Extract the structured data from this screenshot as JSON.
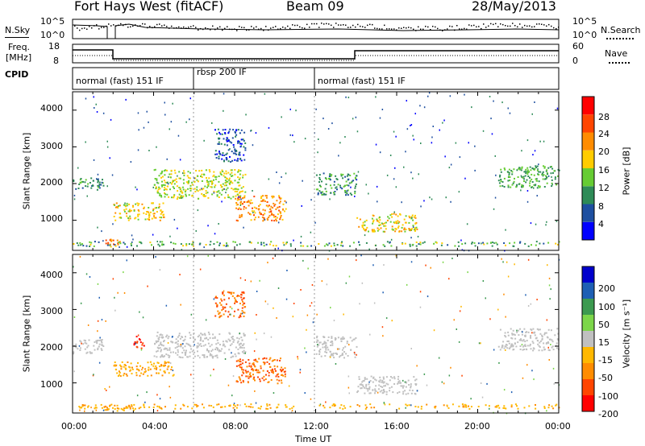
{
  "header": {
    "radar": "Fort Hays West (fitACF)",
    "beam": "Beam 09",
    "date": "28/May/2013"
  },
  "top_panels": {
    "nsky_label": "N.Sky",
    "nsearch_label": "N.Search",
    "noise_ticks_left": [
      "10^5",
      "10^0"
    ],
    "noise_ticks_right": [
      "10^5",
      "10^0"
    ],
    "freq_label_line1": "Freq.",
    "freq_label_line2": "[MHz]",
    "freq_ticks": [
      "18",
      "8"
    ],
    "nave_label": "Nave",
    "nave_ticks": [
      "60",
      "0"
    ],
    "cpid_label": "CPID",
    "cpid_segments": [
      {
        "label": "normal (fast) 151 IF",
        "start_hour": 0,
        "end_hour": 6
      },
      {
        "label": "rbsp 200 IF",
        "start_hour": 6,
        "end_hour": 12
      },
      {
        "label": "normal (fast) 151 IF",
        "start_hour": 12,
        "end_hour": 24
      }
    ]
  },
  "axes": {
    "ylabel": "Slant Range [km]",
    "yticks": [
      "4000",
      "3000",
      "2000",
      "1000"
    ],
    "xticks": [
      "00:00",
      "04:00",
      "08:00",
      "12:00",
      "16:00",
      "20:00",
      "00:00"
    ],
    "xlabel": "Time UT"
  },
  "colorbars": {
    "power": {
      "label": "Power [dB]",
      "ticks": [
        "28",
        "24",
        "20",
        "16",
        "12",
        "8",
        "4"
      ],
      "colors": [
        "#0000ff",
        "#1e4fa0",
        "#2e8b57",
        "#66cc33",
        "#ffcc00",
        "#ff8c00",
        "#ff4500",
        "#ff0000"
      ]
    },
    "velocity": {
      "label": "Velocity [m s⁻¹]",
      "ticks": [
        "200",
        "100",
        "50",
        "15",
        "-15",
        "-50",
        "-100",
        "-200"
      ],
      "colors": [
        "#0000cc",
        "#1e5fb4",
        "#3c9a50",
        "#7cd64a",
        "#c0c0c0",
        "#ffb800",
        "#ff8c00",
        "#ff4500",
        "#ff0000"
      ]
    }
  },
  "chart_data": [
    {
      "type": "heatmap",
      "panel": "power",
      "x_range": [
        0,
        24
      ],
      "y_range": [
        180,
        4500
      ],
      "colorbar_label": "Power [dB]",
      "features": [
        {
          "t0": 0.0,
          "t1": 1.5,
          "r0": 1850,
          "r1": 2200,
          "value": 10
        },
        {
          "t0": 1.5,
          "t1": 2.5,
          "r0": 300,
          "r1": 500,
          "value": 22
        },
        {
          "t0": 2.0,
          "t1": 4.5,
          "r0": 1000,
          "r1": 1500,
          "value": 18
        },
        {
          "t0": 4.0,
          "t1": 8.5,
          "r0": 1600,
          "r1": 2400,
          "value": 16
        },
        {
          "t0": 7.0,
          "t1": 8.5,
          "r0": 2600,
          "r1": 3500,
          "value": 6
        },
        {
          "t0": 8.0,
          "t1": 10.5,
          "r0": 1000,
          "r1": 1700,
          "value": 22
        },
        {
          "t0": 12.0,
          "t1": 14.0,
          "r0": 1700,
          "r1": 2300,
          "value": 10
        },
        {
          "t0": 14.0,
          "t1": 17.0,
          "r0": 700,
          "r1": 1200,
          "value": 18
        },
        {
          "t0": 21.0,
          "t1": 24.0,
          "r0": 1900,
          "r1": 2500,
          "value": 12
        }
      ]
    },
    {
      "type": "heatmap",
      "panel": "velocity",
      "x_range": [
        0,
        24
      ],
      "y_range": [
        180,
        4500
      ],
      "colorbar_label": "Velocity [m s⁻¹]",
      "features": [
        {
          "t0": 0.0,
          "t1": 1.5,
          "r0": 1800,
          "r1": 2200,
          "value": 0
        },
        {
          "t0": 1.5,
          "t1": 3.0,
          "r0": 250,
          "r1": 450,
          "value": -50
        },
        {
          "t0": 2.0,
          "t1": 5.0,
          "r0": 1200,
          "r1": 1600,
          "value": -50
        },
        {
          "t0": 3.0,
          "t1": 3.5,
          "r0": 1900,
          "r1": 2300,
          "value": -200
        },
        {
          "t0": 4.0,
          "t1": 8.5,
          "r0": 1700,
          "r1": 2400,
          "value": 0
        },
        {
          "t0": 7.0,
          "t1": 8.5,
          "r0": 2800,
          "r1": 3500,
          "value": -100
        },
        {
          "t0": 8.0,
          "t1": 10.5,
          "r0": 1000,
          "r1": 1700,
          "value": -100
        },
        {
          "t0": 12.0,
          "t1": 14.0,
          "r0": 1700,
          "r1": 2300,
          "value": 0
        },
        {
          "t0": 14.0,
          "t1": 17.0,
          "r0": 700,
          "r1": 1200,
          "value": 0
        },
        {
          "t0": 21.0,
          "t1": 24.0,
          "r0": 1900,
          "r1": 2500,
          "value": 0
        }
      ]
    }
  ]
}
